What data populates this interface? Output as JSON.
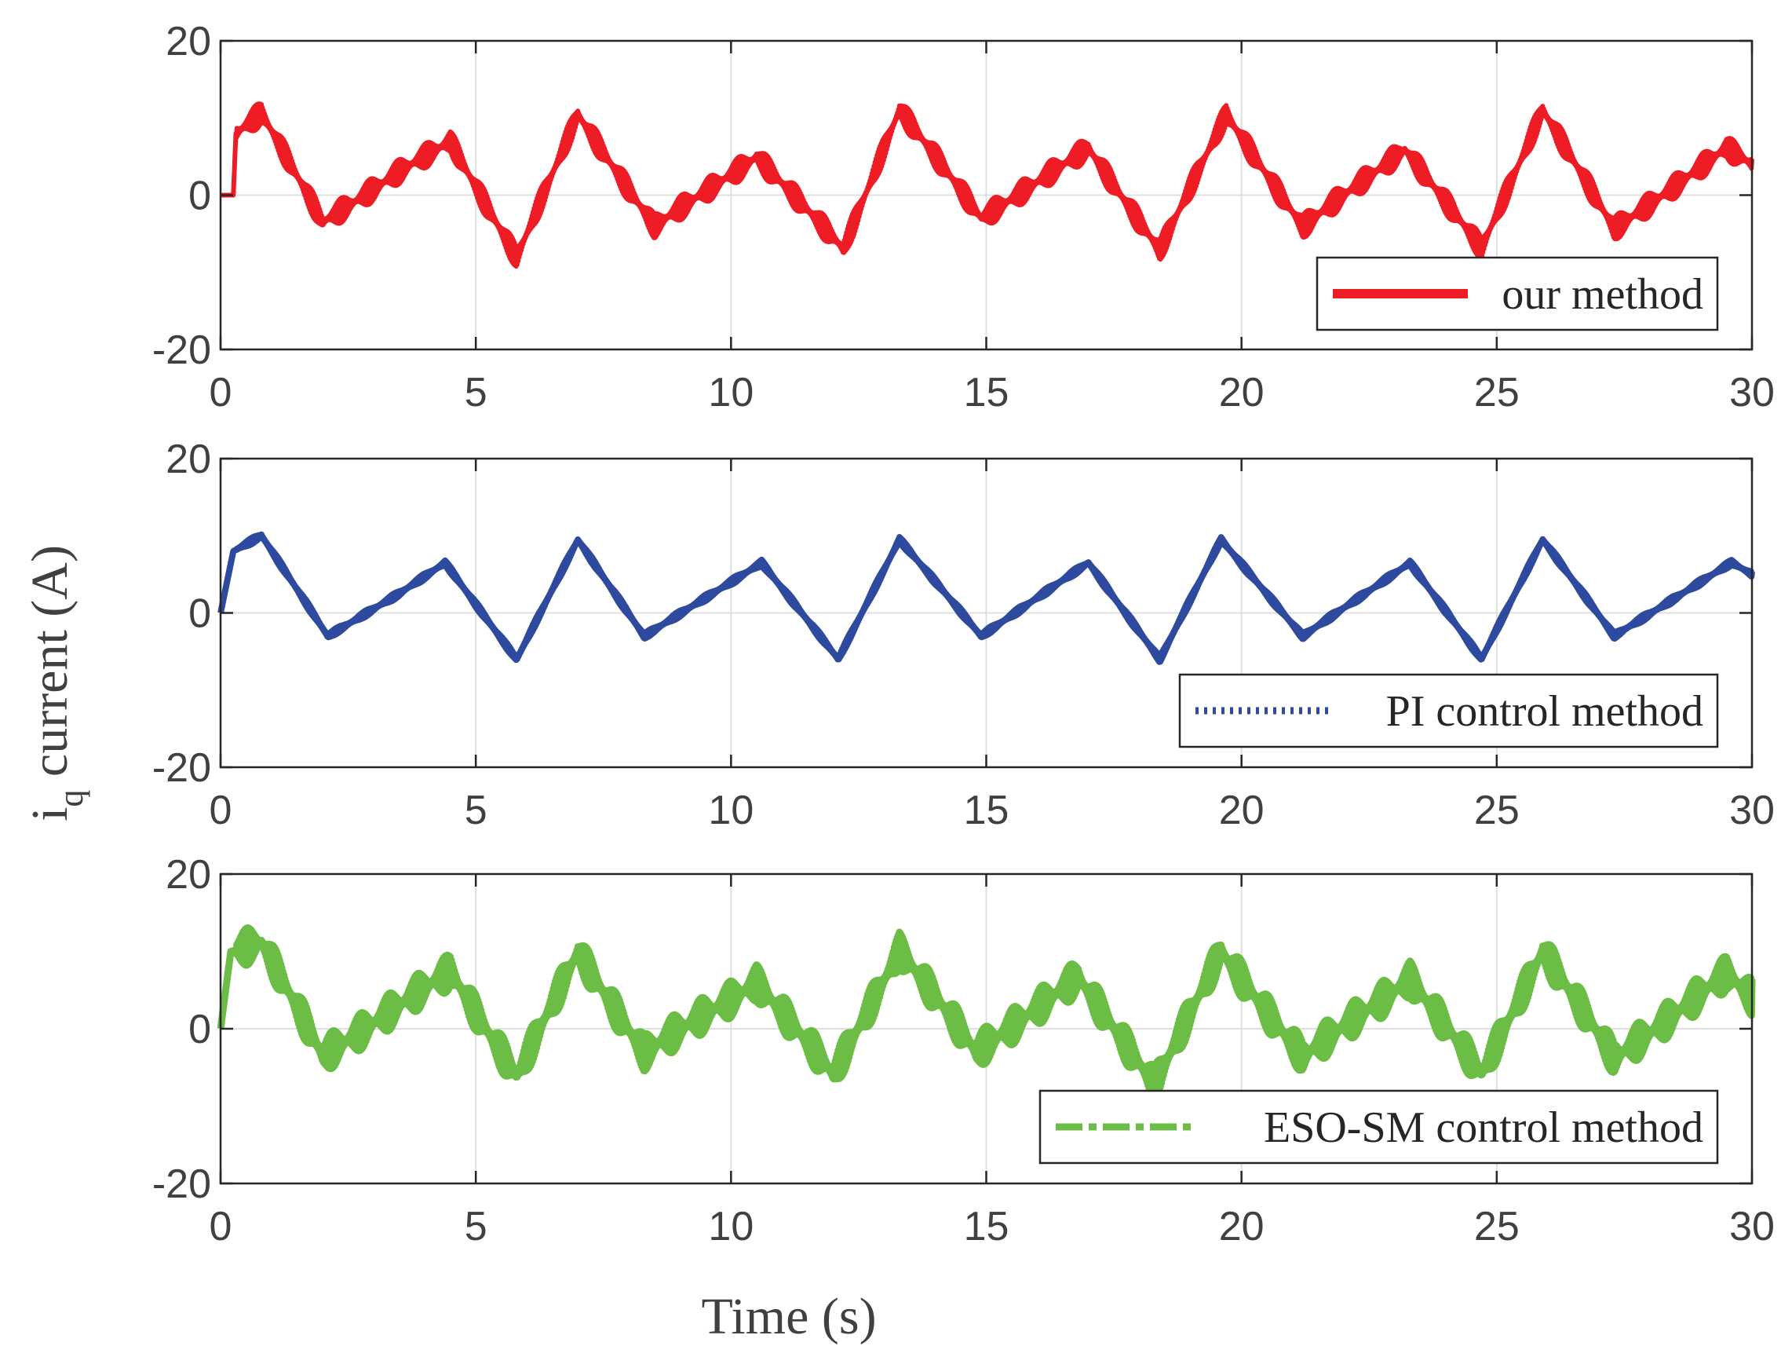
{
  "chart_data": {
    "type": "line",
    "layout": "3 stacked subplots sharing the x-axis",
    "ylabel_main": "i",
    "ylabel_sub": "q",
    "ylabel_rest": " current (A)",
    "xlabel": "Time (s)",
    "xlim": [
      0,
      30
    ],
    "ylim": [
      -20,
      20
    ],
    "xticks": [
      0,
      5,
      10,
      15,
      20,
      25,
      30
    ],
    "yticks": [
      -20,
      0,
      20
    ],
    "xtick_labels": [
      "0",
      "5",
      "10",
      "15",
      "20",
      "25",
      "30"
    ],
    "ytick_labels": [
      "-20",
      "0",
      "20"
    ],
    "grid": true,
    "legend_position": "bottom-right",
    "periods_s": [
      6.35,
      4.3
    ],
    "series": [
      {
        "name": "our method",
        "color": "#ee1c25",
        "linestyle": "solid",
        "band_amplitude": 1.6,
        "points": [
          [
            0,
            0
          ],
          [
            0.25,
            0
          ],
          [
            0.3,
            8
          ],
          [
            0.8,
            10.5
          ],
          [
            2,
            -3.5
          ],
          [
            3.5,
            3
          ],
          [
            4.5,
            7
          ],
          [
            5.8,
            -8
          ],
          [
            7,
            10.5
          ],
          [
            8.5,
            -4
          ],
          [
            10.5,
            5
          ],
          [
            12.2,
            -7
          ],
          [
            13.3,
            11
          ],
          [
            14.9,
            -3
          ],
          [
            17,
            6
          ],
          [
            18.4,
            -7
          ],
          [
            19.7,
            10.5
          ],
          [
            21.2,
            -4
          ],
          [
            23.2,
            6
          ],
          [
            24.7,
            -7
          ],
          [
            25.9,
            11
          ],
          [
            27.3,
            -4.5
          ],
          [
            29.5,
            6
          ],
          [
            30,
            4
          ]
        ]
      },
      {
        "name": "PI control method",
        "color": "#2e4a9e",
        "linestyle": "dotted",
        "band_amplitude": 0.4,
        "points": [
          [
            0,
            0
          ],
          [
            0.25,
            8
          ],
          [
            0.8,
            10
          ],
          [
            2.1,
            -3
          ],
          [
            3.5,
            2.5
          ],
          [
            4.4,
            6.5
          ],
          [
            5.8,
            -6
          ],
          [
            7,
            9.5
          ],
          [
            8.3,
            -3
          ],
          [
            10.6,
            6.5
          ],
          [
            12.1,
            -6
          ],
          [
            13.3,
            9.5
          ],
          [
            14.9,
            -3
          ],
          [
            17,
            6.5
          ],
          [
            18.4,
            -6
          ],
          [
            19.6,
            9.5
          ],
          [
            21.2,
            -3
          ],
          [
            23.3,
            6.5
          ],
          [
            24.7,
            -6
          ],
          [
            25.9,
            9.5
          ],
          [
            27.3,
            -3
          ],
          [
            29.6,
            6.5
          ],
          [
            30,
            5
          ]
        ]
      },
      {
        "name": "ESO-SM control method",
        "color": "#6cbd45",
        "linestyle": "dashdot",
        "band_amplitude": 2.4,
        "points": [
          [
            0,
            0
          ],
          [
            0.2,
            10
          ],
          [
            0.8,
            11
          ],
          [
            2,
            -3.5
          ],
          [
            3.5,
            3
          ],
          [
            4.5,
            7.5
          ],
          [
            5.8,
            -6
          ],
          [
            7,
            10
          ],
          [
            8.3,
            -3
          ],
          [
            10.5,
            6
          ],
          [
            12,
            -6
          ],
          [
            13.3,
            10
          ],
          [
            14.8,
            -3
          ],
          [
            16.8,
            6.5
          ],
          [
            18.3,
            -7
          ],
          [
            19.6,
            10
          ],
          [
            21.2,
            -3.5
          ],
          [
            23.3,
            6.5
          ],
          [
            24.7,
            -6
          ],
          [
            25.9,
            10
          ],
          [
            27.3,
            -4
          ],
          [
            29.5,
            7
          ],
          [
            30,
            4
          ]
        ]
      }
    ]
  }
}
